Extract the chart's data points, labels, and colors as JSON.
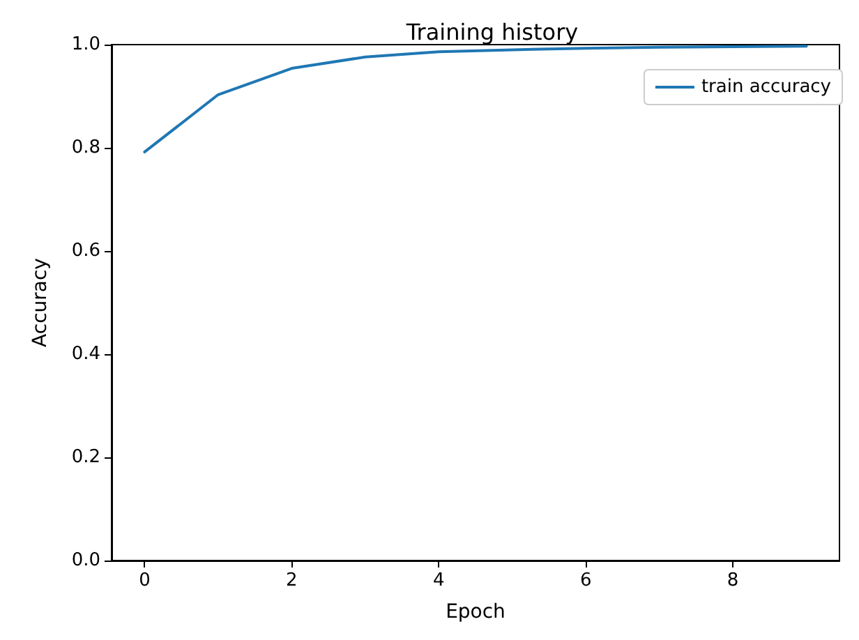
{
  "chart_data": {
    "type": "line",
    "title": "Training history",
    "xlabel": "Epoch",
    "ylabel": "Accuracy",
    "x": [
      0,
      1,
      2,
      3,
      4,
      5,
      6,
      7,
      8,
      9
    ],
    "series": [
      {
        "name": "train accuracy",
        "color": "#1f77b4",
        "values": [
          0.792,
          0.903,
          0.954,
          0.976,
          0.986,
          0.99,
          0.993,
          0.995,
          0.996,
          0.997
        ]
      }
    ],
    "xlim": [
      -0.45,
      9.45
    ],
    "xticks": [
      0,
      2,
      4,
      6,
      8
    ],
    "ylim": [
      0,
      1
    ],
    "yticks": [
      {
        "value": 0,
        "label": "0.0"
      },
      0.2,
      0.4,
      0.6,
      0.8,
      {
        "value": 1,
        "label": "1.0"
      }
    ],
    "legend": "top right",
    "grid": false,
    "marker": "none",
    "line_style": "solid"
  }
}
